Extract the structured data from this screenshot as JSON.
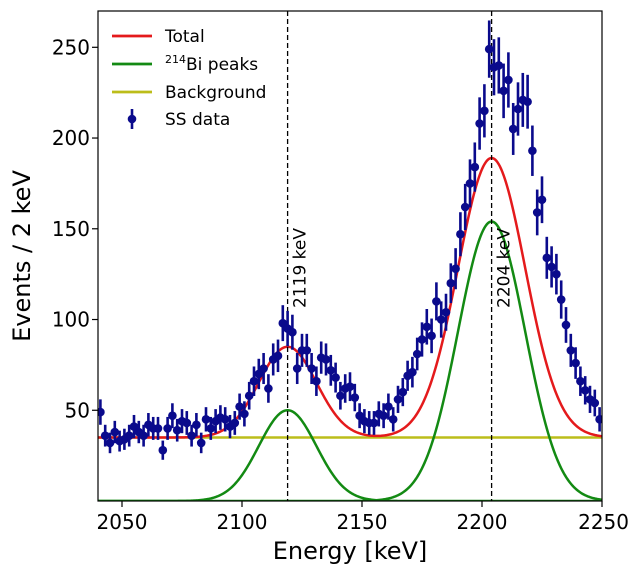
{
  "chart_data": {
    "type": "scatter",
    "xlabel": "Energy [keV]",
    "ylabel": "Events / 2 keV",
    "xlim": [
      2040,
      2250
    ],
    "ylim": [
      0,
      270
    ],
    "xticks": [
      2050,
      2100,
      2150,
      2200,
      2250
    ],
    "yticks": [
      50,
      100,
      150,
      200,
      250
    ],
    "grid": false,
    "legend_position": "top-left",
    "legend": [
      {
        "label": "Total",
        "kind": "line",
        "color": "#e41a1c"
      },
      {
        "label_sup": "214",
        "label": "Bi peaks",
        "kind": "line",
        "color": "#138a13"
      },
      {
        "label": "Background",
        "kind": "line",
        "color": "#bcbd1a"
      },
      {
        "label": "SS data",
        "kind": "marker",
        "color": "#0a0a8c"
      }
    ],
    "annotations": [
      {
        "x": 2119,
        "label": "2119 keV"
      },
      {
        "x": 2204,
        "label": "2204 keV"
      }
    ],
    "model": {
      "background": 35,
      "peaks": [
        {
          "mu": 2119,
          "amp": 50,
          "sigma": 12
        },
        {
          "mu": 2204,
          "amp": 154,
          "sigma": 14
        }
      ]
    },
    "series": [
      {
        "name": "SS data",
        "x": [
          2041,
          2043,
          2045,
          2047,
          2049,
          2051,
          2053,
          2055,
          2057,
          2059,
          2061,
          2063,
          2065,
          2067,
          2069,
          2071,
          2073,
          2075,
          2077,
          2079,
          2081,
          2083,
          2085,
          2087,
          2089,
          2091,
          2093,
          2095,
          2097,
          2099,
          2101,
          2103,
          2105,
          2107,
          2109,
          2111,
          2113,
          2115,
          2117,
          2119,
          2121,
          2123,
          2125,
          2127,
          2129,
          2131,
          2133,
          2135,
          2137,
          2139,
          2141,
          2143,
          2145,
          2147,
          2149,
          2151,
          2153,
          2155,
          2157,
          2159,
          2161,
          2163,
          2165,
          2167,
          2169,
          2171,
          2173,
          2175,
          2177,
          2179,
          2181,
          2183,
          2185,
          2187,
          2189,
          2191,
          2193,
          2195,
          2197,
          2199,
          2201,
          2203,
          2205,
          2207,
          2209,
          2211,
          2213,
          2215,
          2217,
          2219,
          2221,
          2223,
          2225,
          2227,
          2229,
          2231,
          2233,
          2235,
          2237,
          2239,
          2241,
          2243,
          2245,
          2247,
          2249
        ],
        "y": [
          49,
          36,
          32,
          38,
          33,
          34,
          36,
          41,
          38,
          36,
          42,
          40,
          40,
          28,
          40,
          47,
          39,
          44,
          43,
          36,
          42,
          32,
          45,
          40,
          44,
          46,
          45,
          41,
          43,
          52,
          48,
          58,
          66,
          70,
          73,
          62,
          78,
          80,
          98,
          95,
          93,
          73,
          83,
          83,
          73,
          66,
          79,
          78,
          72,
          68,
          58,
          62,
          63,
          57,
          47,
          44,
          43,
          43,
          48,
          47,
          52,
          45,
          56,
          60,
          69,
          71,
          81,
          89,
          96,
          91,
          110,
          100,
          104,
          120,
          128,
          147,
          162,
          175,
          184,
          208,
          215,
          249,
          239,
          240,
          226,
          232,
          205,
          216,
          221,
          220,
          193,
          159,
          166,
          134,
          129,
          125,
          111,
          97,
          83,
          76,
          66,
          61,
          56,
          54,
          45
        ]
      }
    ]
  }
}
